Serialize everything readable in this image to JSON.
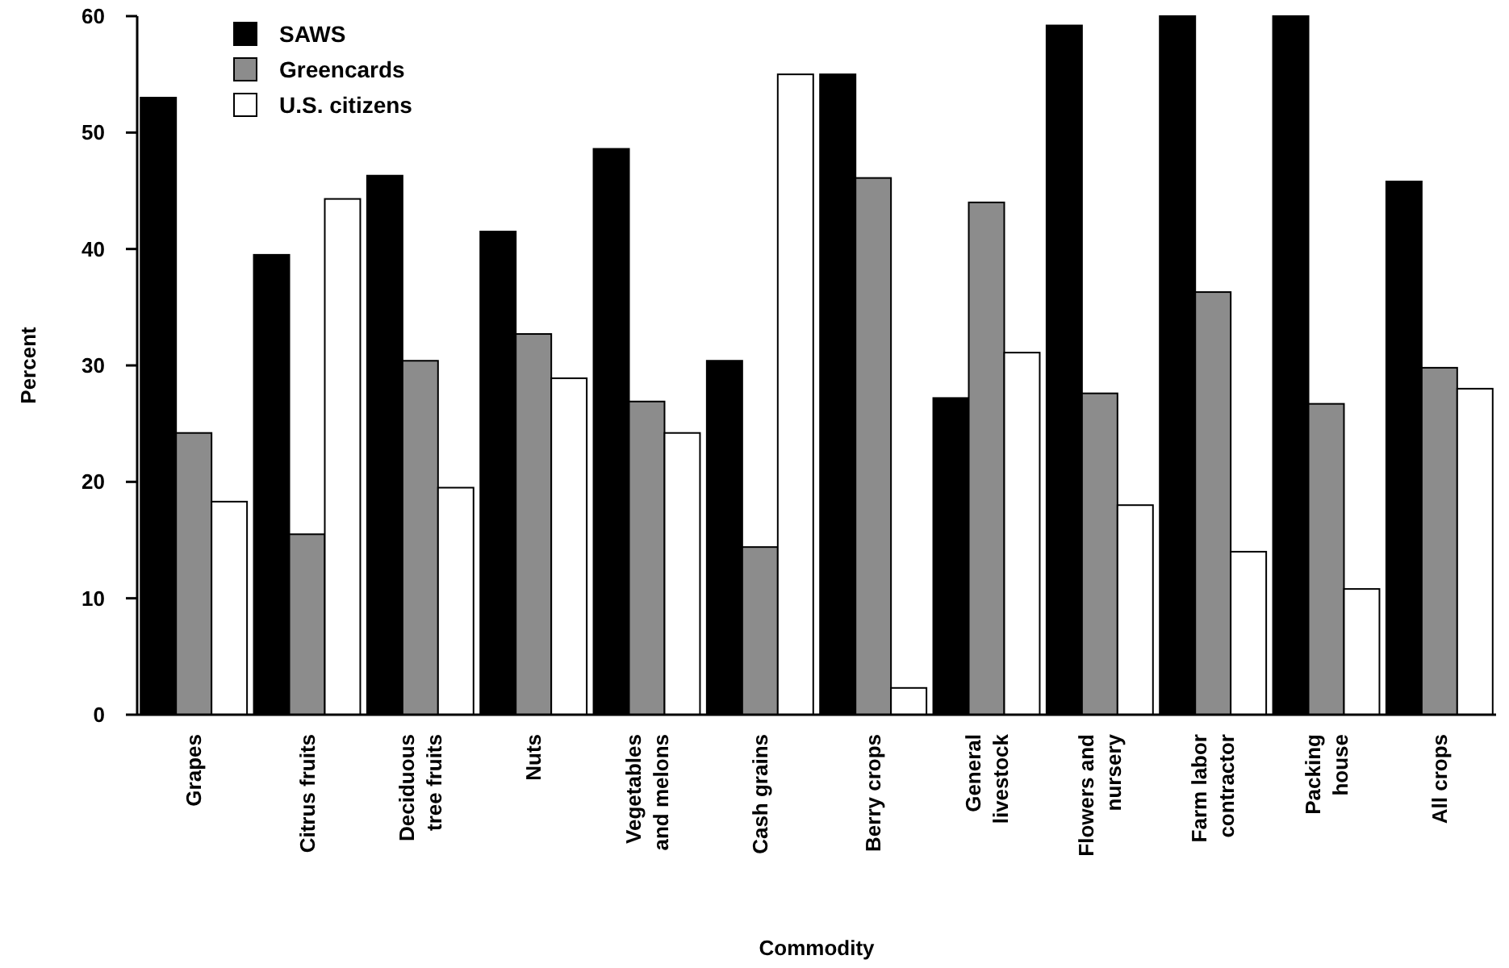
{
  "chart_data": {
    "type": "bar",
    "xlabel": "Commodity",
    "ylabel": "Percent",
    "categories": [
      "Grapes",
      "Citrus fruits",
      "Deciduous\ntree fruits",
      "Nuts",
      "Vegetables\nand melons",
      "Cash grains",
      "Berry crops",
      "General\nlivestock",
      "Flowers and\nnursery",
      "Farm labor\ncontractor",
      "Packing\nhouse",
      "All crops"
    ],
    "series": [
      {
        "name": "SAWS",
        "color": "#000000",
        "values": [
          53,
          39.5,
          46.3,
          41.5,
          48.6,
          30.4,
          55,
          27.2,
          59.2,
          60,
          60,
          45.8
        ]
      },
      {
        "name": "Greencards",
        "color": "#8c8c8c",
        "values": [
          24.2,
          15.5,
          30.4,
          32.7,
          26.9,
          14.4,
          46.1,
          44,
          27.6,
          36.3,
          26.7,
          29.8
        ]
      },
      {
        "name": "U.S. citizens",
        "color": "#ffffff",
        "values": [
          18.3,
          44.3,
          19.5,
          28.9,
          24.2,
          55,
          2.3,
          31.1,
          18,
          14,
          10.8,
          28
        ]
      }
    ],
    "ylim": [
      0,
      60
    ],
    "yticks": [
      0,
      10,
      20,
      30,
      40,
      50,
      60
    ],
    "legend": "top left",
    "grid": false
  }
}
